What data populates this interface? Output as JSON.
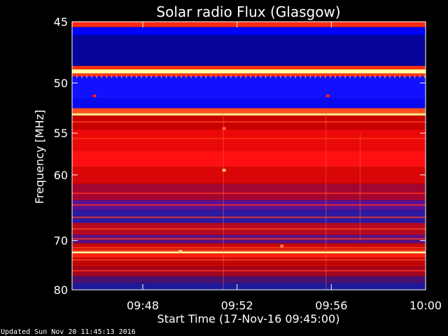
{
  "chart_data": {
    "type": "heatmap",
    "title": "Solar radio Flux (Glasgow)",
    "xlabel": "Start Time (17-Nov-16 09:45:00)",
    "ylabel": "Frequency [MHz]",
    "x_ticks": [
      "09:48",
      "09:52",
      "09:56",
      "10:00"
    ],
    "x_tick_minutes": [
      48,
      52,
      56,
      60
    ],
    "xlim_minutes": [
      45,
      60
    ],
    "y_ticks": [
      45,
      50,
      55,
      60,
      70,
      80
    ],
    "ylim": [
      45,
      80
    ],
    "y_scale": "reciprocal",
    "bands": [
      {
        "from": 45.0,
        "to": 45.4,
        "color": "#ff2a10"
      },
      {
        "from": 45.4,
        "to": 46.0,
        "color": "#0000ff"
      },
      {
        "from": 46.0,
        "to": 48.5,
        "color": "#05059a"
      },
      {
        "from": 48.5,
        "to": 48.8,
        "color": "#ff3010"
      },
      {
        "from": 48.8,
        "to": 49.15,
        "color": "#ffffa0"
      },
      {
        "from": 49.15,
        "to": 49.4,
        "color": "#ff3010"
      },
      {
        "from": 49.4,
        "to": 51.4,
        "color": "#1111ff"
      },
      {
        "from": 51.4,
        "to": 52.4,
        "color": "#0a0af0"
      },
      {
        "from": 52.4,
        "to": 52.9,
        "color": "#ff5020"
      },
      {
        "from": 52.9,
        "to": 53.15,
        "color": "#ffe080"
      },
      {
        "from": 53.15,
        "to": 54.6,
        "color": "#c80000"
      },
      {
        "from": 54.6,
        "to": 57.0,
        "color": "#ea0808"
      },
      {
        "from": 57.0,
        "to": 59.0,
        "color": "#ff1010"
      },
      {
        "from": 59.0,
        "to": 61.2,
        "color": "#d80606"
      },
      {
        "from": 61.2,
        "to": 63.5,
        "color": "#a30533"
      },
      {
        "from": 63.5,
        "to": 65.0,
        "color": "#5a0f90"
      },
      {
        "from": 65.0,
        "to": 67.0,
        "color": "#2d1aa0"
      },
      {
        "from": 67.0,
        "to": 69.0,
        "color": "#b30a1f"
      },
      {
        "from": 69.0,
        "to": 70.5,
        "color": "#5a1080"
      },
      {
        "from": 70.5,
        "to": 71.6,
        "color": "#c80a0a"
      },
      {
        "from": 71.6,
        "to": 72.0,
        "color": "#ff3010"
      },
      {
        "from": 72.0,
        "to": 72.35,
        "color": "#ffffa0"
      },
      {
        "from": 72.35,
        "to": 73.2,
        "color": "#ff2010"
      },
      {
        "from": 73.2,
        "to": 75.0,
        "color": "#c00505"
      },
      {
        "from": 75.0,
        "to": 77.0,
        "color": "#a0051f"
      },
      {
        "from": 77.0,
        "to": 78.5,
        "color": "#4a1070"
      },
      {
        "from": 78.5,
        "to": 80.0,
        "color": "#1c1a9a"
      }
    ],
    "stripes": [
      {
        "freq": 53.8,
        "color": "#ff4020"
      },
      {
        "freq": 55.6,
        "color": "#ff3818"
      },
      {
        "freq": 62.5,
        "color": "#ff3020"
      },
      {
        "freq": 64.2,
        "color": "#ff3020"
      },
      {
        "freq": 66.1,
        "color": "#ff3a20"
      },
      {
        "freq": 68.0,
        "color": "#ff4020"
      },
      {
        "freq": 69.7,
        "color": "#ff3818"
      },
      {
        "freq": 71.3,
        "color": "#ff4020"
      },
      {
        "freq": 73.6,
        "color": "#ff4424"
      },
      {
        "freq": 75.8,
        "color": "#ff3018"
      }
    ],
    "spots": [
      {
        "minute": 45.95,
        "freq": 51.2,
        "color": "#ff2020"
      },
      {
        "minute": 55.85,
        "freq": 51.2,
        "color": "#ff2020"
      },
      {
        "minute": 51.45,
        "freq": 59.4,
        "color": "#ffc060"
      },
      {
        "minute": 51.45,
        "freq": 54.5,
        "color": "#ff6040"
      },
      {
        "minute": 49.6,
        "freq": 72.0,
        "color": "#ffe080"
      },
      {
        "minute": 53.9,
        "freq": 71.0,
        "color": "#ff8040"
      }
    ]
  },
  "footer": {
    "updated": "Updated Sun Nov 20 11:45:13 2016"
  }
}
